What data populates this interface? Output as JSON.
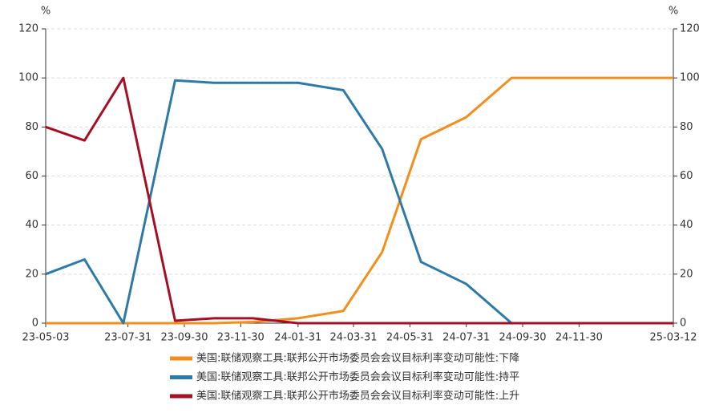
{
  "chart_data": {
    "type": "line",
    "y_unit": "%",
    "y2_unit": "%",
    "x": [
      "23-05-03",
      "23-06-14",
      "23-07-26",
      "23-09-20",
      "23-11-01",
      "23-12-13",
      "24-01-31",
      "24-03-20",
      "24-05-01",
      "24-06-12",
      "24-07-31",
      "24-09-18",
      "24-11-07",
      "24-12-18",
      "25-01-29",
      "25-03-12"
    ],
    "xlim": [
      "23-05-03",
      "25-03-12"
    ],
    "xticks": [
      "23-05-03",
      "23-07-31",
      "23-09-30",
      "23-11-30",
      "24-01-31",
      "24-03-31",
      "24-05-31",
      "24-07-31",
      "24-09-30",
      "24-11-30",
      "25-03-12"
    ],
    "ylim": [
      0,
      120
    ],
    "yticks": [
      0,
      20,
      40,
      60,
      80,
      100,
      120
    ],
    "y2lim": [
      0,
      120
    ],
    "y2ticks": [
      0,
      20,
      40,
      60,
      80,
      100,
      120
    ],
    "grid": true,
    "series": [
      {
        "name": "美国:联储观察工具:联邦公开市场委员会会议目标利率变动可能性:下降",
        "color": "#f28e1c",
        "values": [
          0,
          0,
          0,
          0,
          0,
          0.5,
          2,
          5,
          29,
          75,
          84,
          100,
          100,
          100,
          100,
          100
        ]
      },
      {
        "name": "美国:联储观察工具:联邦公开市场委员会会议目标利率变动可能性:持平",
        "color": "#2e7aa6",
        "values": [
          20,
          26,
          0,
          99,
          98,
          98,
          98,
          95,
          71,
          25,
          16,
          0,
          0,
          0,
          0,
          0
        ]
      },
      {
        "name": "美国:联储观察工具:联邦公开市场委员会会议目标利率变动可能性:上升",
        "color": "#a50f23",
        "values": [
          80,
          74.5,
          100,
          1,
          2,
          2,
          0,
          0,
          0,
          0,
          0,
          0,
          0,
          0,
          0,
          0
        ]
      }
    ]
  }
}
